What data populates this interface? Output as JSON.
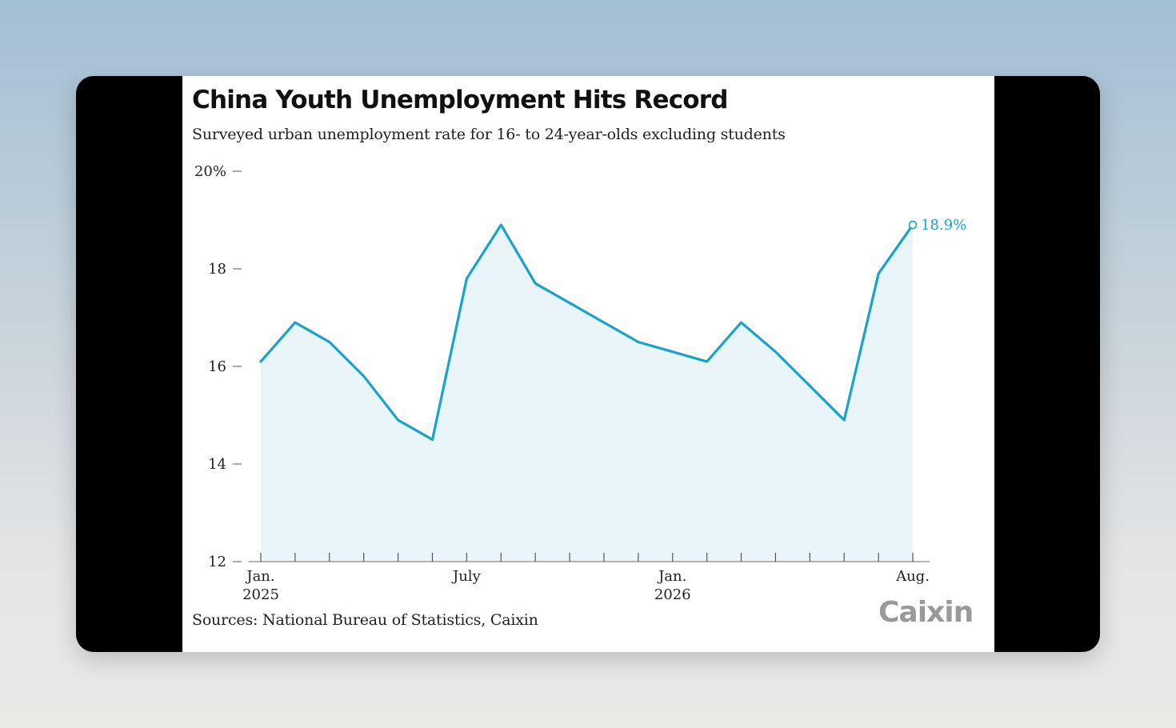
{
  "chart_data": {
    "type": "area",
    "title": "China Youth Unemployment Hits Record",
    "subtitle": "Surveyed urban unemployment rate for 16- to 24-year-olds excluding students",
    "source": "Sources: National Bureau of Statistics, Caixin",
    "brand": "Caixin",
    "ylim": [
      12,
      20
    ],
    "y_ticks": [
      {
        "value": 20,
        "label": "20%"
      },
      {
        "value": 18,
        "label": "18"
      },
      {
        "value": 16,
        "label": "16"
      },
      {
        "value": 14,
        "label": "14"
      },
      {
        "value": 12,
        "label": "12"
      }
    ],
    "x": [
      "2025-01",
      "2025-02",
      "2025-03",
      "2025-04",
      "2025-05",
      "2025-06",
      "2025-07",
      "2025-08",
      "2025-09",
      "2025-10",
      "2025-11",
      "2025-12",
      "2026-01",
      "2026-02",
      "2026-03",
      "2026-04",
      "2026-05",
      "2026-06",
      "2026-07",
      "2026-08"
    ],
    "x_tick_labels": [
      {
        "index": 0,
        "lines": [
          "Jan.",
          "2025"
        ]
      },
      {
        "index": 6,
        "lines": [
          "July"
        ]
      },
      {
        "index": 12,
        "lines": [
          "Jan.",
          "2026"
        ]
      },
      {
        "index": 19,
        "lines": [
          "Aug."
        ]
      }
    ],
    "series": [
      {
        "values": [
          16.1,
          16.9,
          16.5,
          15.8,
          14.9,
          14.5,
          17.8,
          18.9,
          17.7,
          17.3,
          16.9,
          16.5,
          16.3,
          16.1,
          16.9,
          16.3,
          15.6,
          14.9,
          17.9,
          18.9
        ],
        "end_label": "18.9%"
      }
    ],
    "colors": {
      "line": "#1aa3c8",
      "fill": "#eaf5f9",
      "axis": "#555555"
    },
    "grid": false,
    "legend": "none"
  }
}
